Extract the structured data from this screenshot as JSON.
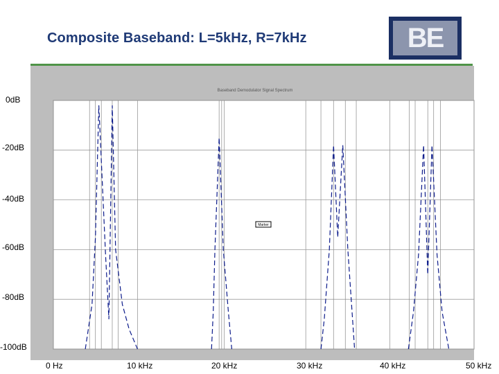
{
  "header": {
    "title": "Composite Baseband: L=5kHz, R=7kHz",
    "logo_text": "BE"
  },
  "colors": {
    "title": "#1f3a76",
    "rule": "#4f9447",
    "plot_frame": "#bdbdbd",
    "trace": "#0b1a8a",
    "grid": "#9a9a9a"
  },
  "inner_plot": {
    "title": "Baseband Demodulator Signal Spectrum",
    "marker_label": "Marker"
  },
  "chart_data": {
    "type": "line",
    "xlabel": "",
    "ylabel": "",
    "xlim": [
      0,
      50
    ],
    "ylim": [
      -100,
      0
    ],
    "x_tick_labels": [
      "0 Hz",
      "10 kHz",
      "20 kHz",
      "30 kHz",
      "40 kHz",
      "50 kHz"
    ],
    "y_tick_labels": [
      "0dB",
      "-20dB",
      "-40dB",
      "-60dB",
      "-80dB",
      "-100dB"
    ],
    "series": [
      {
        "x": [
          3.8,
          4.6,
          5.0,
          5.4,
          6.2,
          6.6,
          7.0,
          7.4,
          8.2,
          9.0,
          10.0
        ],
        "y": [
          -100,
          -82,
          -55,
          -2,
          -62,
          -88,
          -2,
          -60,
          -82,
          -92,
          -100
        ]
      },
      {
        "x": [
          18.8,
          19.0,
          19.2,
          19.7,
          20.2,
          20.8,
          21.2
        ],
        "y": [
          -100,
          -85,
          -60,
          -15,
          -60,
          -85,
          -100
        ]
      },
      {
        "x": [
          31.8,
          32.2,
          32.8,
          33.3,
          33.8,
          34.4,
          35.0,
          35.8
        ],
        "y": [
          -100,
          -88,
          -60,
          -18,
          -55,
          -18,
          -60,
          -100
        ]
      },
      {
        "x": [
          42.2,
          42.8,
          43.4,
          44.0,
          44.5,
          45.0,
          45.6,
          46.2,
          47.0
        ],
        "y": [
          -100,
          -85,
          -62,
          -18,
          -70,
          -18,
          -62,
          -85,
          -100
        ]
      }
    ],
    "carrier_lines_x": [
      4.3,
      5.0,
      5.7,
      7.0,
      7.7,
      19.7,
      20.3,
      31.8,
      33.3,
      34.7,
      36.0,
      42.3,
      43.0,
      44.5,
      45.2,
      46.0
    ],
    "grid": true
  }
}
